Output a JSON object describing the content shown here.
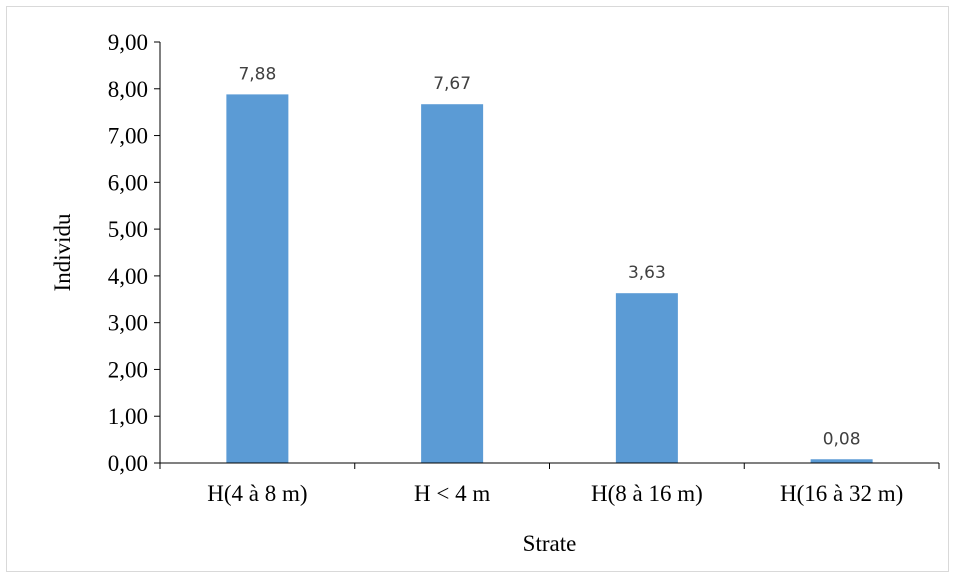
{
  "chart_data": {
    "type": "bar",
    "categories": [
      "H(4 à 8 m)",
      "H < 4 m",
      "H(8 à 16 m)",
      "H(16 à 32 m)"
    ],
    "values": [
      7.88,
      7.67,
      3.63,
      0.08
    ],
    "data_labels": [
      "7,88",
      "7,67",
      "3,63",
      "0,08"
    ],
    "y_ticks": [
      0,
      1,
      2,
      3,
      4,
      5,
      6,
      7,
      8,
      9
    ],
    "y_tick_labels": [
      "0,00",
      "1,00",
      "2,00",
      "3,00",
      "4,00",
      "5,00",
      "6,00",
      "7,00",
      "8,00",
      "9,00"
    ],
    "ylim": [
      0,
      9
    ],
    "xlabel": "Strate",
    "ylabel": "Individu",
    "title": "",
    "grid": false,
    "legend": "none",
    "bar_color": "#5B9BD5",
    "axis_color": "#000000",
    "data_label_color": "#404040"
  }
}
